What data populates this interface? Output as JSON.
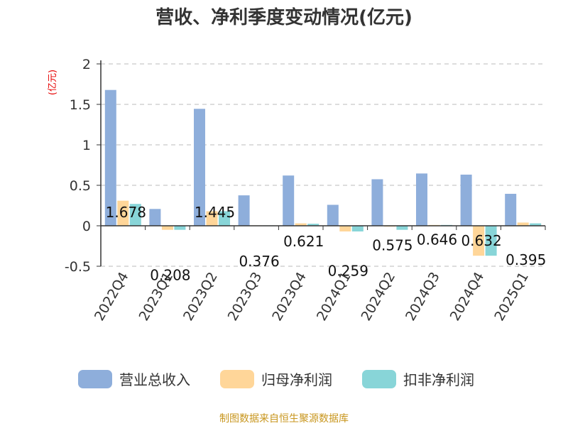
{
  "chart_data": {
    "type": "bar",
    "title": "营收、净利季度变动情况(亿元)",
    "ylabel": "(亿元)",
    "ylim": [
      -0.5,
      2
    ],
    "yticks": [
      "2",
      "1.5",
      "1",
      "0.5",
      "0",
      "-0.5"
    ],
    "ytick_values": [
      2,
      1.5,
      1,
      0.5,
      0,
      -0.5
    ],
    "grid": true,
    "legend_position": "bottom",
    "categories": [
      "2022Q4",
      "2023Q1",
      "2023Q2",
      "2023Q3",
      "2023Q4",
      "2024Q1",
      "2024Q2",
      "2024Q3",
      "2024Q4",
      "2025Q1"
    ],
    "series": [
      {
        "name": "营业总收入",
        "color": "#8eaedb",
        "values": [
          1.678,
          0.208,
          1.445,
          0.376,
          0.621,
          0.259,
          0.575,
          0.646,
          0.632,
          0.395
        ]
      },
      {
        "name": "归母净利润",
        "color": "#ffd699",
        "values": [
          0.31,
          -0.05,
          0.18,
          0.005,
          0.03,
          -0.07,
          -0.01,
          0.01,
          -0.37,
          0.04
        ]
      },
      {
        "name": "扣非净利润",
        "color": "#88d5d8",
        "values": [
          0.27,
          -0.05,
          0.18,
          0.005,
          0.025,
          -0.07,
          -0.05,
          0.01,
          -0.37,
          0.03
        ]
      }
    ],
    "data_labels": [
      "1.678",
      "0.208",
      "1.445",
      "0.376",
      "0.621",
      "0.259",
      "0.575",
      "0.646",
      "0.632",
      "0.395"
    ]
  },
  "source": "制图数据来自恒生聚源数据库"
}
